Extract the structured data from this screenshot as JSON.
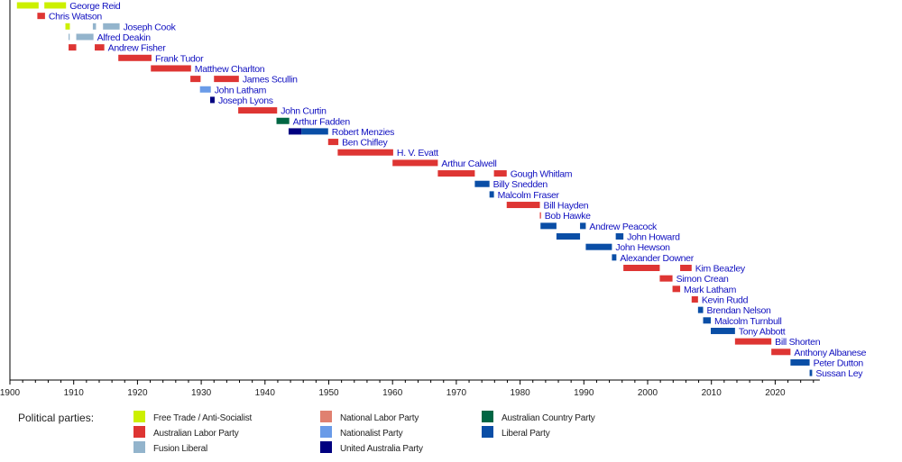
{
  "chart_data": {
    "type": "timeline",
    "xlim": [
      1900,
      2027
    ],
    "x_ticks": [
      1900,
      1910,
      1920,
      1930,
      1940,
      1950,
      1960,
      1970,
      1980,
      1990,
      2000,
      2010,
      2020
    ],
    "legend_title": "Political parties:",
    "parties": [
      {
        "key": "ft",
        "name": "Free Trade / Anti-Socialist",
        "color": "#ccf000"
      },
      {
        "key": "alp",
        "name": "Australian Labor Party",
        "color": "#de3533"
      },
      {
        "key": "fus",
        "name": "Fusion Liberal",
        "color": "#93b4cc"
      },
      {
        "key": "nlp",
        "name": "National Labor Party",
        "color": "#e08070"
      },
      {
        "key": "nat",
        "name": "Nationalist Party",
        "color": "#6a9be8"
      },
      {
        "key": "uap",
        "name": "United Australia Party",
        "color": "#000080"
      },
      {
        "key": "cp",
        "name": "Australian Country Party",
        "color": "#006644"
      },
      {
        "key": "lib",
        "name": "Liberal Party",
        "color": "#0a4ea6"
      }
    ],
    "leaders": [
      {
        "name": "George Reid",
        "terms": [
          [
            1901.1,
            1904.5,
            "ft"
          ],
          [
            1905.4,
            1908.8,
            "ft"
          ]
        ]
      },
      {
        "name": "Chris Watson",
        "terms": [
          [
            1904.3,
            1905.5,
            "alp"
          ]
        ]
      },
      {
        "name": "Joseph Cook",
        "terms": [
          [
            1908.7,
            1909.4,
            "ft"
          ],
          [
            1913.0,
            1913.5,
            "fus"
          ],
          [
            1914.6,
            1917.2,
            "fus"
          ]
        ]
      },
      {
        "name": "Alfred Deakin",
        "terms": [
          [
            1909.2,
            1909.3,
            "fus"
          ],
          [
            1910.4,
            1913.1,
            "fus"
          ]
        ]
      },
      {
        "name": "Andrew Fisher",
        "terms": [
          [
            1909.2,
            1910.4,
            "alp"
          ],
          [
            1913.3,
            1914.8,
            "alp"
          ]
        ]
      },
      {
        "name": "Frank Tudor",
        "terms": [
          [
            1917.0,
            1922.2,
            "alp"
          ]
        ]
      },
      {
        "name": "Matthew Charlton",
        "terms": [
          [
            1922.1,
            1928.4,
            "alp"
          ]
        ]
      },
      {
        "name": "James Scullin",
        "terms": [
          [
            1928.3,
            1929.9,
            "alp"
          ],
          [
            1932.0,
            1935.9,
            "alp"
          ]
        ]
      },
      {
        "name": "John Latham",
        "terms": [
          [
            1929.8,
            1931.5,
            "nat"
          ]
        ]
      },
      {
        "name": "Joseph Lyons",
        "terms": [
          [
            1931.4,
            1932.1,
            "uap"
          ]
        ]
      },
      {
        "name": "John Curtin",
        "terms": [
          [
            1935.8,
            1941.9,
            "alp"
          ]
        ]
      },
      {
        "name": "Arthur Fadden",
        "terms": [
          [
            1941.8,
            1943.8,
            "cp"
          ]
        ]
      },
      {
        "name": "Robert Menzies",
        "terms": [
          [
            1943.7,
            1945.7,
            "uap"
          ],
          [
            1945.7,
            1949.9,
            "lib"
          ]
        ]
      },
      {
        "name": "Ben Chifley",
        "terms": [
          [
            1949.9,
            1951.5,
            "alp"
          ]
        ]
      },
      {
        "name": "H. V. Evatt",
        "terms": [
          [
            1951.4,
            1960.1,
            "alp"
          ]
        ]
      },
      {
        "name": "Arthur Calwell",
        "terms": [
          [
            1960.0,
            1967.1,
            "alp"
          ]
        ]
      },
      {
        "name": "Gough Whitlam",
        "terms": [
          [
            1967.1,
            1972.9,
            "alp"
          ],
          [
            1975.9,
            1977.9,
            "alp"
          ]
        ]
      },
      {
        "name": "Billy Snedden",
        "terms": [
          [
            1972.9,
            1975.2,
            "lib"
          ]
        ]
      },
      {
        "name": "Malcolm Fraser",
        "terms": [
          [
            1975.2,
            1975.9,
            "lib"
          ]
        ]
      },
      {
        "name": "Bill Hayden",
        "terms": [
          [
            1977.9,
            1983.1,
            "alp"
          ]
        ]
      },
      {
        "name": "Bob Hawke",
        "terms": [
          [
            1983.1,
            1983.2,
            "alp"
          ]
        ]
      },
      {
        "name": "Andrew Peacock",
        "terms": [
          [
            1983.2,
            1985.7,
            "lib"
          ],
          [
            1989.4,
            1990.3,
            "lib"
          ]
        ]
      },
      {
        "name": "John Howard",
        "terms": [
          [
            1985.7,
            1989.4,
            "lib"
          ],
          [
            1995.0,
            1996.2,
            "lib"
          ]
        ]
      },
      {
        "name": "John Hewson",
        "terms": [
          [
            1990.3,
            1994.4,
            "lib"
          ]
        ]
      },
      {
        "name": "Alexander Downer",
        "terms": [
          [
            1994.4,
            1995.1,
            "lib"
          ]
        ]
      },
      {
        "name": "Kim Beazley",
        "terms": [
          [
            1996.2,
            2001.9,
            "alp"
          ],
          [
            2005.1,
            2006.9,
            "alp"
          ]
        ]
      },
      {
        "name": "Simon Crean",
        "terms": [
          [
            2001.9,
            2003.9,
            "alp"
          ]
        ]
      },
      {
        "name": "Mark Latham",
        "terms": [
          [
            2003.9,
            2005.1,
            "alp"
          ]
        ]
      },
      {
        "name": "Kevin Rudd",
        "terms": [
          [
            2006.9,
            2007.9,
            "alp"
          ]
        ]
      },
      {
        "name": "Brendan Nelson",
        "terms": [
          [
            2007.9,
            2008.7,
            "lib"
          ]
        ]
      },
      {
        "name": "Malcolm Turnbull",
        "terms": [
          [
            2008.7,
            2009.9,
            "lib"
          ]
        ]
      },
      {
        "name": "Tony Abbott",
        "terms": [
          [
            2009.9,
            2013.7,
            "lib"
          ]
        ]
      },
      {
        "name": "Bill Shorten",
        "terms": [
          [
            2013.7,
            2019.4,
            "alp"
          ]
        ]
      },
      {
        "name": "Anthony Albanese",
        "terms": [
          [
            2019.4,
            2022.4,
            "alp"
          ]
        ]
      },
      {
        "name": "Peter Dutton",
        "terms": [
          [
            2022.4,
            2025.4,
            "lib"
          ]
        ]
      },
      {
        "name": "Sussan Ley",
        "terms": [
          [
            2025.4,
            2025.8,
            "lib"
          ]
        ]
      }
    ]
  }
}
